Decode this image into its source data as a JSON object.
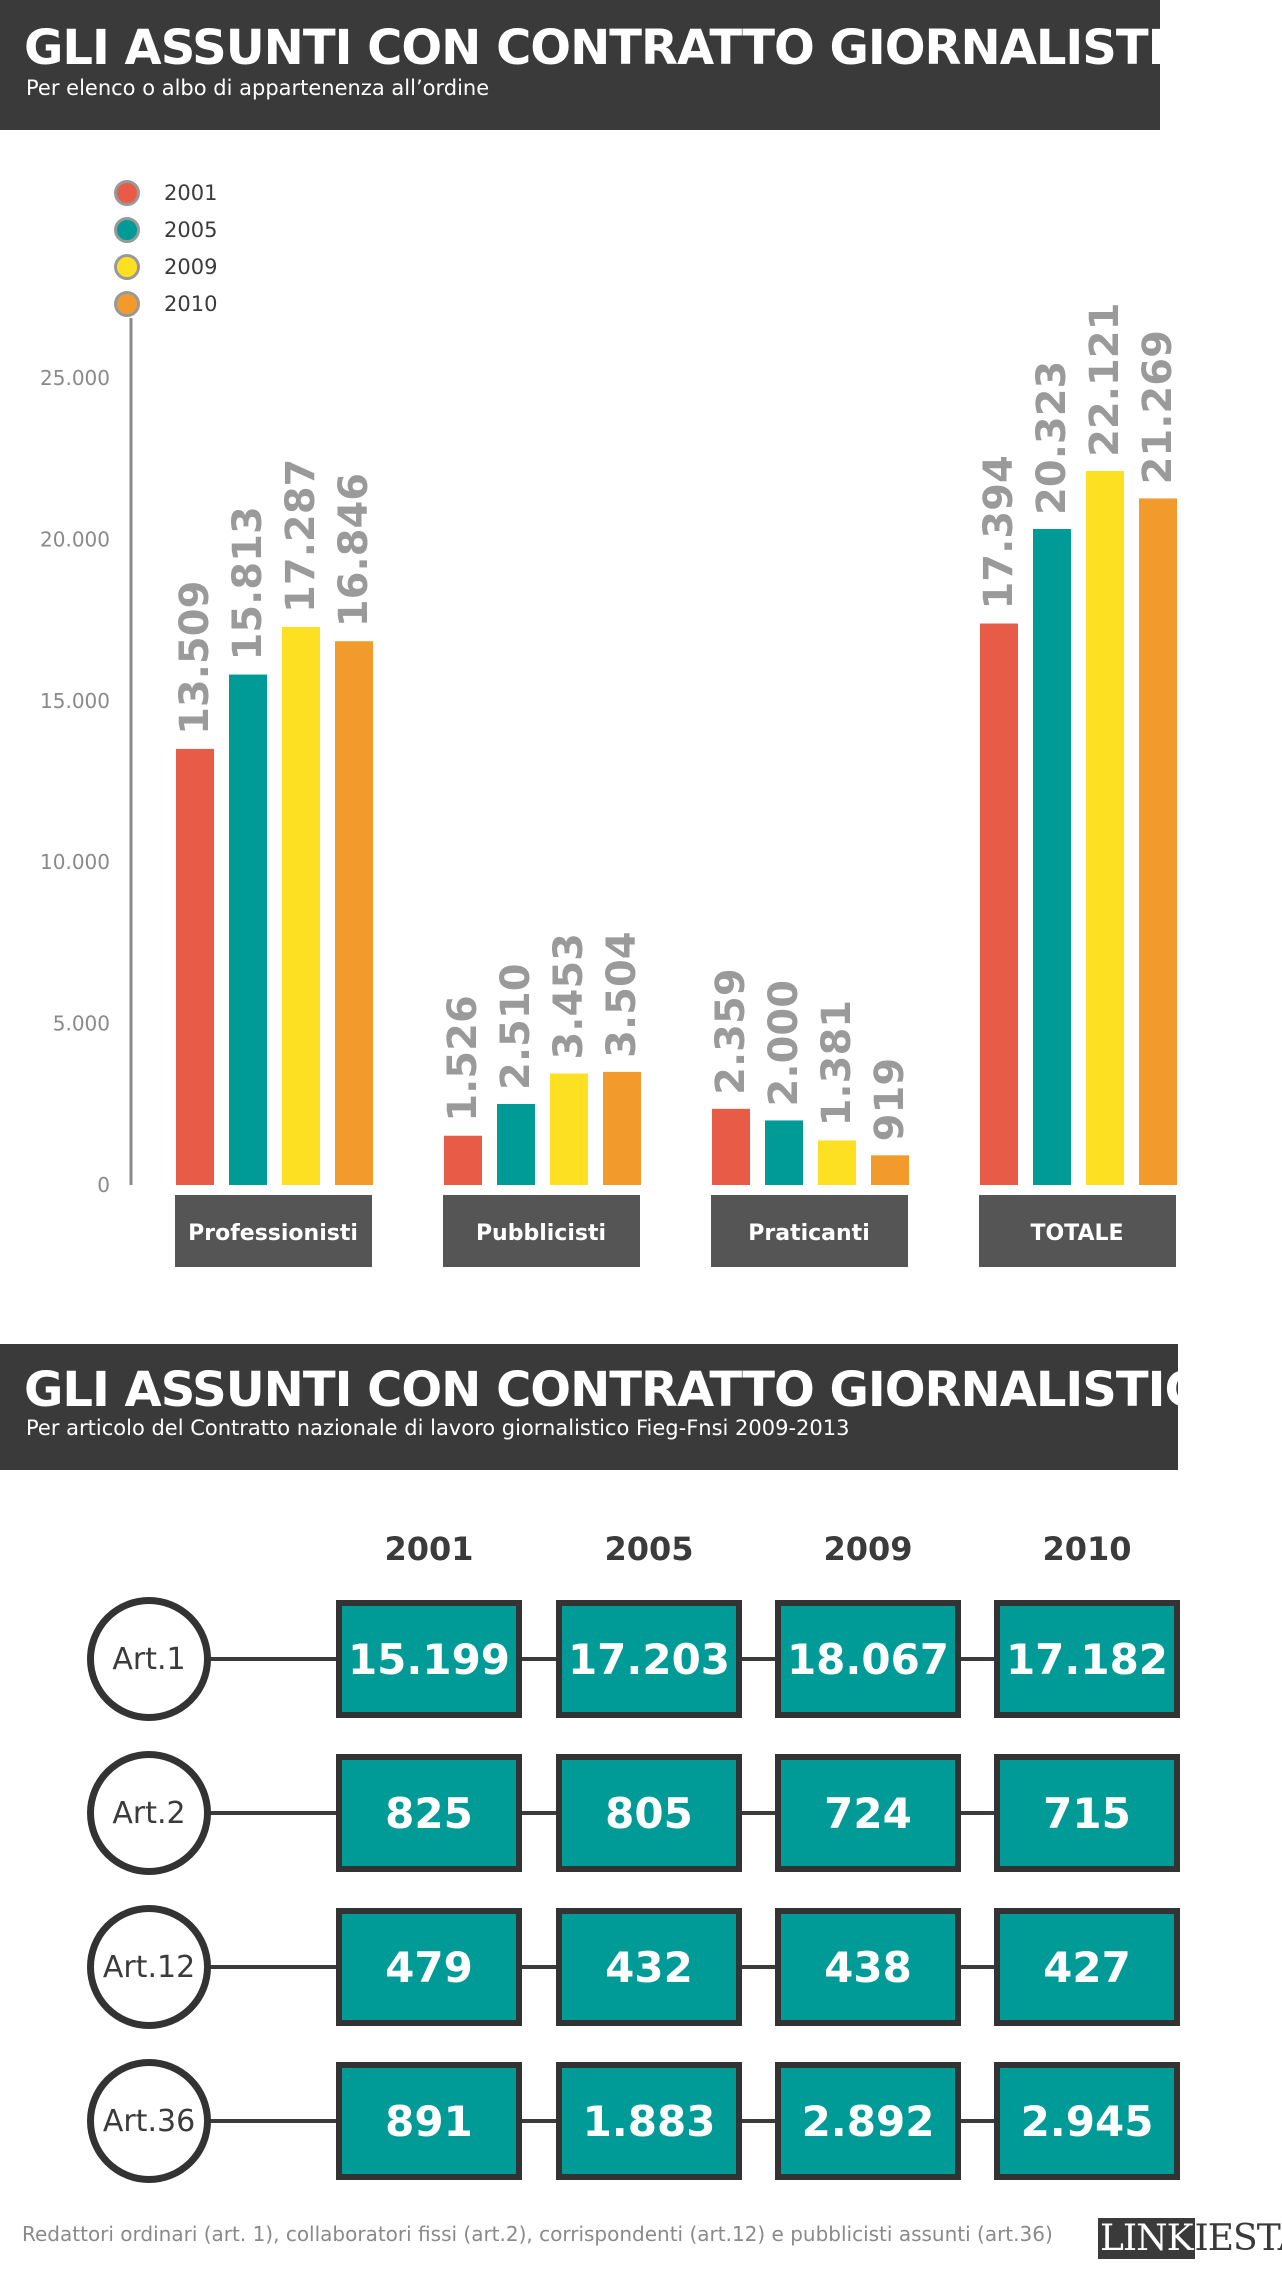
{
  "section1": {
    "title": "GLI ASSUNTI CON CONTRATTO GIORNALISTICO",
    "subtitle": "Per elenco o albo di appartenenza all’ordine"
  },
  "section2": {
    "title": "GLI ASSUNTI CON CONTRATTO GIORNALISTICO",
    "subtitle": "Per articolo del Contratto nazionale di lavoro giornalistico Fieg-Fnsi 2009-2013"
  },
  "legend": [
    {
      "label": "2001",
      "color": "#e85c47"
    },
    {
      "label": "2005",
      "color": "#009b96"
    },
    {
      "label": "2009",
      "color": "#fde022"
    },
    {
      "label": "2010",
      "color": "#f39a2d"
    }
  ],
  "chart_data": {
    "type": "bar",
    "categories": [
      "Professionisti",
      "Pubblicisti",
      "Praticanti",
      "TOTALE"
    ],
    "series": [
      {
        "name": "2001",
        "color": "#e85c47",
        "values": [
          13509,
          1526,
          2359,
          17394
        ],
        "labels": [
          "13.509",
          "1.526",
          "2.359",
          "17.394"
        ]
      },
      {
        "name": "2005",
        "color": "#009b96",
        "values": [
          15813,
          2510,
          2000,
          20323
        ],
        "labels": [
          "15.813",
          "2.510",
          "2.000",
          "20.323"
        ]
      },
      {
        "name": "2009",
        "color": "#fde022",
        "values": [
          17287,
          3453,
          1381,
          22121
        ],
        "labels": [
          "17.287",
          "3.453",
          "1.381",
          "22.121"
        ]
      },
      {
        "name": "2010",
        "color": "#f39a2d",
        "values": [
          16846,
          3504,
          919,
          21269
        ],
        "labels": [
          "16.846",
          "3.504",
          "919",
          "21.269"
        ]
      }
    ],
    "yticks": [
      0,
      5000,
      10000,
      15000,
      20000,
      25000
    ],
    "ytick_labels": [
      "0",
      "5.000",
      "10.000",
      "15.000",
      "20.000",
      "25.000"
    ],
    "ylim": [
      0,
      25000
    ],
    "grid": false,
    "legend_position": "top-left"
  },
  "table": {
    "columns": [
      "2001",
      "2005",
      "2009",
      "2010"
    ],
    "rows": [
      {
        "label": "Art.1",
        "values": [
          "15.199",
          "17.203",
          "18.067",
          "17.182"
        ]
      },
      {
        "label": "Art.2",
        "values": [
          "825",
          "805",
          "724",
          "715"
        ]
      },
      {
        "label": "Art.12",
        "values": [
          "479",
          "432",
          "438",
          "427"
        ]
      },
      {
        "label": "Art.36",
        "values": [
          "891",
          "1.883",
          "2.892",
          "2.945"
        ]
      }
    ]
  },
  "footnote": "Redattori ordinari (art. 1), collaboratori fissi (art.2), corrispondenti (art.12) e pubblicisti assunti (art.36)",
  "logo": {
    "part1": "LINK",
    "part2": "IESTA"
  }
}
